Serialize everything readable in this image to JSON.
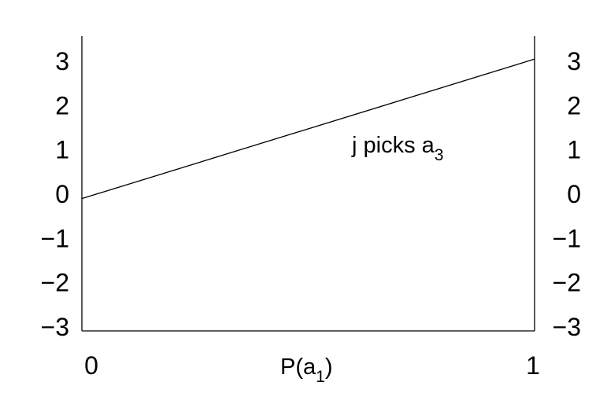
{
  "chart_data": {
    "type": "line",
    "title": "",
    "xlabel": {
      "main": "P(a",
      "sub": "1",
      "close": ")"
    },
    "ylabel": "",
    "xlim": [
      0,
      1
    ],
    "ylim": [
      -3,
      3.3
    ],
    "x_ticks": [
      "0",
      "1"
    ],
    "y_ticks": [
      "3",
      "2",
      "1",
      "0",
      "−1",
      "−2",
      "−3"
    ],
    "y_tick_values": [
      3,
      2,
      1,
      0,
      -1,
      -2,
      -3
    ],
    "grid": false,
    "series": [
      {
        "x": [
          0,
          1
        ],
        "y": [
          -0.1,
          3.05
        ],
        "color": "#000000"
      }
    ],
    "annotations": [
      {
        "text": "j picks a",
        "sub": "3",
        "x": 0.6,
        "y": 1.05
      }
    ]
  }
}
